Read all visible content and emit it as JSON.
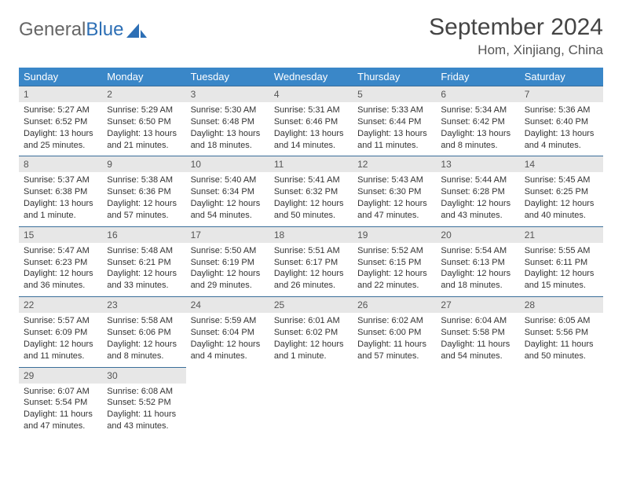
{
  "brand": {
    "part1": "General",
    "part2": "Blue"
  },
  "title": "September 2024",
  "location": "Hom, Xinjiang, China",
  "colors": {
    "header_bg": "#3a87c8",
    "daynum_bg": "#e7e7e7",
    "cell_border": "#3a6e9a",
    "logo_blue": "#2d6fb5"
  },
  "weekdays": [
    "Sunday",
    "Monday",
    "Tuesday",
    "Wednesday",
    "Thursday",
    "Friday",
    "Saturday"
  ],
  "days": [
    {
      "n": "1",
      "sr": "Sunrise: 5:27 AM",
      "ss": "Sunset: 6:52 PM",
      "d1": "Daylight: 13 hours",
      "d2": "and 25 minutes."
    },
    {
      "n": "2",
      "sr": "Sunrise: 5:29 AM",
      "ss": "Sunset: 6:50 PM",
      "d1": "Daylight: 13 hours",
      "d2": "and 21 minutes."
    },
    {
      "n": "3",
      "sr": "Sunrise: 5:30 AM",
      "ss": "Sunset: 6:48 PM",
      "d1": "Daylight: 13 hours",
      "d2": "and 18 minutes."
    },
    {
      "n": "4",
      "sr": "Sunrise: 5:31 AM",
      "ss": "Sunset: 6:46 PM",
      "d1": "Daylight: 13 hours",
      "d2": "and 14 minutes."
    },
    {
      "n": "5",
      "sr": "Sunrise: 5:33 AM",
      "ss": "Sunset: 6:44 PM",
      "d1": "Daylight: 13 hours",
      "d2": "and 11 minutes."
    },
    {
      "n": "6",
      "sr": "Sunrise: 5:34 AM",
      "ss": "Sunset: 6:42 PM",
      "d1": "Daylight: 13 hours",
      "d2": "and 8 minutes."
    },
    {
      "n": "7",
      "sr": "Sunrise: 5:36 AM",
      "ss": "Sunset: 6:40 PM",
      "d1": "Daylight: 13 hours",
      "d2": "and 4 minutes."
    },
    {
      "n": "8",
      "sr": "Sunrise: 5:37 AM",
      "ss": "Sunset: 6:38 PM",
      "d1": "Daylight: 13 hours",
      "d2": "and 1 minute."
    },
    {
      "n": "9",
      "sr": "Sunrise: 5:38 AM",
      "ss": "Sunset: 6:36 PM",
      "d1": "Daylight: 12 hours",
      "d2": "and 57 minutes."
    },
    {
      "n": "10",
      "sr": "Sunrise: 5:40 AM",
      "ss": "Sunset: 6:34 PM",
      "d1": "Daylight: 12 hours",
      "d2": "and 54 minutes."
    },
    {
      "n": "11",
      "sr": "Sunrise: 5:41 AM",
      "ss": "Sunset: 6:32 PM",
      "d1": "Daylight: 12 hours",
      "d2": "and 50 minutes."
    },
    {
      "n": "12",
      "sr": "Sunrise: 5:43 AM",
      "ss": "Sunset: 6:30 PM",
      "d1": "Daylight: 12 hours",
      "d2": "and 47 minutes."
    },
    {
      "n": "13",
      "sr": "Sunrise: 5:44 AM",
      "ss": "Sunset: 6:28 PM",
      "d1": "Daylight: 12 hours",
      "d2": "and 43 minutes."
    },
    {
      "n": "14",
      "sr": "Sunrise: 5:45 AM",
      "ss": "Sunset: 6:25 PM",
      "d1": "Daylight: 12 hours",
      "d2": "and 40 minutes."
    },
    {
      "n": "15",
      "sr": "Sunrise: 5:47 AM",
      "ss": "Sunset: 6:23 PM",
      "d1": "Daylight: 12 hours",
      "d2": "and 36 minutes."
    },
    {
      "n": "16",
      "sr": "Sunrise: 5:48 AM",
      "ss": "Sunset: 6:21 PM",
      "d1": "Daylight: 12 hours",
      "d2": "and 33 minutes."
    },
    {
      "n": "17",
      "sr": "Sunrise: 5:50 AM",
      "ss": "Sunset: 6:19 PM",
      "d1": "Daylight: 12 hours",
      "d2": "and 29 minutes."
    },
    {
      "n": "18",
      "sr": "Sunrise: 5:51 AM",
      "ss": "Sunset: 6:17 PM",
      "d1": "Daylight: 12 hours",
      "d2": "and 26 minutes."
    },
    {
      "n": "19",
      "sr": "Sunrise: 5:52 AM",
      "ss": "Sunset: 6:15 PM",
      "d1": "Daylight: 12 hours",
      "d2": "and 22 minutes."
    },
    {
      "n": "20",
      "sr": "Sunrise: 5:54 AM",
      "ss": "Sunset: 6:13 PM",
      "d1": "Daylight: 12 hours",
      "d2": "and 18 minutes."
    },
    {
      "n": "21",
      "sr": "Sunrise: 5:55 AM",
      "ss": "Sunset: 6:11 PM",
      "d1": "Daylight: 12 hours",
      "d2": "and 15 minutes."
    },
    {
      "n": "22",
      "sr": "Sunrise: 5:57 AM",
      "ss": "Sunset: 6:09 PM",
      "d1": "Daylight: 12 hours",
      "d2": "and 11 minutes."
    },
    {
      "n": "23",
      "sr": "Sunrise: 5:58 AM",
      "ss": "Sunset: 6:06 PM",
      "d1": "Daylight: 12 hours",
      "d2": "and 8 minutes."
    },
    {
      "n": "24",
      "sr": "Sunrise: 5:59 AM",
      "ss": "Sunset: 6:04 PM",
      "d1": "Daylight: 12 hours",
      "d2": "and 4 minutes."
    },
    {
      "n": "25",
      "sr": "Sunrise: 6:01 AM",
      "ss": "Sunset: 6:02 PM",
      "d1": "Daylight: 12 hours",
      "d2": "and 1 minute."
    },
    {
      "n": "26",
      "sr": "Sunrise: 6:02 AM",
      "ss": "Sunset: 6:00 PM",
      "d1": "Daylight: 11 hours",
      "d2": "and 57 minutes."
    },
    {
      "n": "27",
      "sr": "Sunrise: 6:04 AM",
      "ss": "Sunset: 5:58 PM",
      "d1": "Daylight: 11 hours",
      "d2": "and 54 minutes."
    },
    {
      "n": "28",
      "sr": "Sunrise: 6:05 AM",
      "ss": "Sunset: 5:56 PM",
      "d1": "Daylight: 11 hours",
      "d2": "and 50 minutes."
    },
    {
      "n": "29",
      "sr": "Sunrise: 6:07 AM",
      "ss": "Sunset: 5:54 PM",
      "d1": "Daylight: 11 hours",
      "d2": "and 47 minutes."
    },
    {
      "n": "30",
      "sr": "Sunrise: 6:08 AM",
      "ss": "Sunset: 5:52 PM",
      "d1": "Daylight: 11 hours",
      "d2": "and 43 minutes."
    }
  ]
}
